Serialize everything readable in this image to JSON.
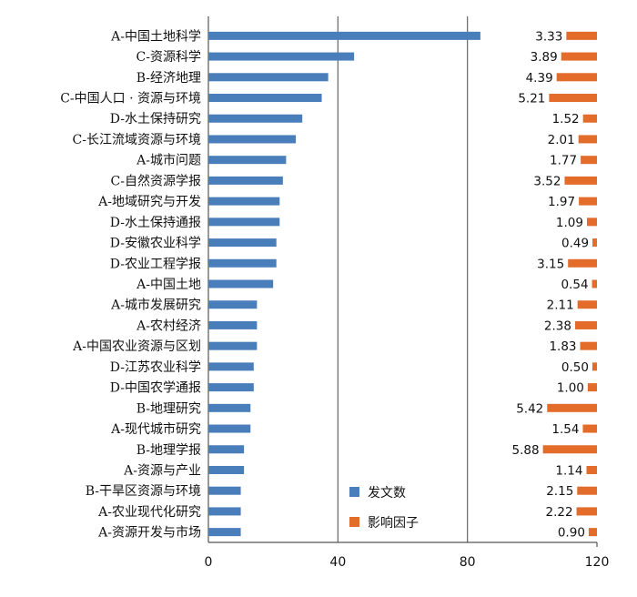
{
  "chart_data": {
    "type": "bar",
    "orientation": "horizontal",
    "categories": [
      "A-中国土地科学",
      "C-资源科学",
      "B-经济地理",
      "C-中国人口 · 资源与环境",
      "D-水土保持研究",
      "C-长江流域资源与环境",
      "A-城市问题",
      "C-自然资源学报",
      "A-地域研究与开发",
      "D-水土保持通报",
      "D-安徽农业科学",
      "D-农业工程学报",
      "A-中国土地",
      "A-城市发展研究",
      "A-农村经济",
      "A-中国农业资源与区划",
      "D-江苏农业科学",
      "D-中国农学通报",
      "B-地理研究",
      "A-现代城市研究",
      "B-地理学报",
      "A-资源与产业",
      "B-干旱区资源与环境",
      "A-农业现代化研究",
      "A-资源开发与市场"
    ],
    "series": [
      {
        "name": "发文数",
        "color": "#4a7ebb",
        "values": [
          84,
          45,
          37,
          35,
          29,
          27,
          24,
          23,
          22,
          22,
          21,
          21,
          20,
          15,
          15,
          15,
          14,
          14,
          13,
          13,
          11,
          11,
          10,
          10,
          10
        ]
      },
      {
        "name": "影响因子",
        "color": "#e36c2a",
        "values": [
          3.33,
          3.89,
          4.39,
          5.21,
          1.52,
          2.01,
          1.77,
          3.52,
          1.97,
          1.09,
          0.49,
          3.15,
          0.54,
          2.11,
          2.38,
          1.83,
          0.5,
          1.0,
          5.42,
          1.54,
          5.88,
          1.14,
          2.15,
          2.22,
          0.9
        ],
        "value_labels": [
          "3.33",
          "3.89",
          "4.39",
          "5.21",
          "1.52",
          "2.01",
          "1.77",
          "3.52",
          "1.97",
          "1.09",
          "0.49",
          "3.15",
          "0.54",
          "2.11",
          "2.38",
          "1.83",
          "0.50",
          "1.00",
          "5.42",
          "1.54",
          "5.88",
          "1.14",
          "2.15",
          "2.22",
          "0.90"
        ],
        "drawn_from": "right"
      }
    ],
    "xaxis": {
      "ticks": [
        "0",
        "40",
        "80",
        "120"
      ],
      "tick_values": [
        0,
        40,
        80,
        120
      ],
      "range": [
        0,
        120
      ]
    },
    "gridlines": "vertical",
    "legend": "bottom-center"
  }
}
